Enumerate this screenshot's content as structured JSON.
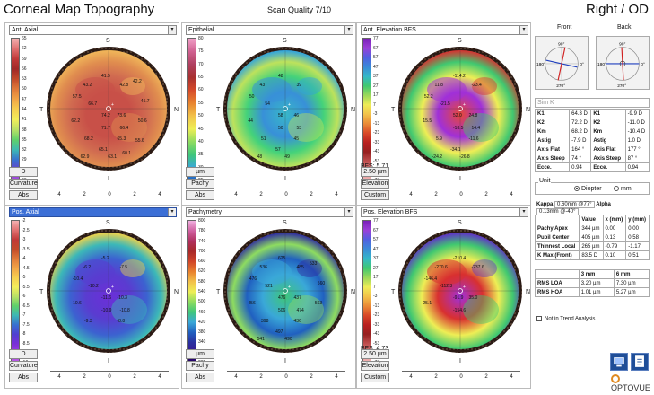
{
  "header": {
    "title": "Corneal Map Topography",
    "scan_quality": "Scan Quality 7/10",
    "eye": "Right / OD"
  },
  "directions": {
    "superior": "S",
    "inferior": "I",
    "temporal": "T",
    "nasal": "N"
  },
  "axis_ticks": [
    "4",
    "2",
    "0",
    "2",
    "4"
  ],
  "panels": [
    {
      "id": "ant-axial",
      "map_label": "Ant. Axial",
      "selected": false,
      "scale": [
        "65",
        "62",
        "59",
        "56",
        "53",
        "50",
        "47",
        "44",
        "41",
        "38",
        "35",
        "32",
        "29",
        "26",
        "23"
      ],
      "scale_colors": [
        "#f2b0b0",
        "#e07070",
        "#c03838",
        "#a02828",
        "#c24a2a",
        "#e07a3a",
        "#f1a547",
        "#f6cf50",
        "#f2ee5a",
        "#b8e066",
        "#5fd06a",
        "#3db7b5",
        "#3870d0",
        "#6a40c8",
        "#b050e0"
      ],
      "map_colors": [
        "#c85048",
        "#c85048",
        "#d06a50",
        "#e08d4f",
        "#f1b75a"
      ],
      "values": [
        "41.5",
        "43.2",
        "42.8",
        "57.5",
        "66.7",
        "74.2",
        "73.6",
        "62.2",
        "71.7",
        "66.4",
        "68.2",
        "65.3",
        "65.1",
        "62.9",
        "63.1",
        "42.2",
        "45.7",
        "50.6",
        "55.6",
        "60.1"
      ],
      "buttons": [
        "D",
        "Curvature",
        "Abs"
      ],
      "bfs": ""
    },
    {
      "id": "epithelial",
      "map_label": "Epithelial",
      "selected": false,
      "scale": [
        "80",
        "75",
        "70",
        "65",
        "60",
        "55",
        "50",
        "45",
        "40",
        "35",
        "30",
        "25"
      ],
      "scale_colors": [
        "#f0a0c8",
        "#d06090",
        "#b04060",
        "#a83030",
        "#d64a2a",
        "#e8832f",
        "#f2c24a",
        "#eeee55",
        "#8edc60",
        "#3fc67a",
        "#3aa8d8",
        "#2060c0"
      ],
      "map_colors": [
        "#38b8c8",
        "#3890d8",
        "#44d27a",
        "#bde25c",
        "#2ea2e0"
      ],
      "values": [
        "48",
        "43",
        "39",
        "50",
        "54",
        "58",
        "46",
        "44",
        "50",
        "53",
        "51",
        "45",
        "57",
        "48",
        "49"
      ],
      "buttons": [
        "µm",
        "Pachy",
        "Abs"
      ],
      "bfs": ""
    },
    {
      "id": "ant-elevation",
      "map_label": "Ant. Elevation BFS",
      "selected": false,
      "scale": [
        "77",
        "67",
        "57",
        "47",
        "37",
        "27",
        "17",
        "7",
        "-3",
        "-13",
        "-23",
        "-33",
        "-43",
        "-53",
        "-63",
        "-77"
      ],
      "scale_colors": [
        "#7a20b8",
        "#9a40d8",
        "#5060e0",
        "#3a8ad8",
        "#34b8c8",
        "#40c870",
        "#9ad85a",
        "#eeec58",
        "#f2c24a",
        "#ea8a36",
        "#d84828",
        "#b82020",
        "#962020",
        "#c05050",
        "#e08888",
        "#f2b8b8"
      ],
      "map_colors": [
        "#e64838",
        "#a030d8",
        "#eeee55",
        "#40c870",
        "#d83030"
      ],
      "values": [
        "-114.2",
        "11.8",
        "-23.4",
        "52.2",
        "-21.5",
        "52.0",
        "24.8",
        "15.5",
        "-18.5",
        "14.4",
        "5.9",
        "-11.6",
        "-34.1",
        "-24.2",
        "-26.8"
      ],
      "buttons": [
        "2.50 µm",
        "Elevation",
        "Custom"
      ],
      "bfs": "BFS: 5.71"
    },
    {
      "id": "pos-axial",
      "map_label": "Pos. Axial",
      "selected": true,
      "scale": [
        "-2",
        "-2.5",
        "-3",
        "-3.5",
        "-4",
        "-4.5",
        "-5",
        "-5.5",
        "-6",
        "-6.5",
        "-7",
        "-7.5",
        "-8",
        "-8.5",
        "-9",
        "-10"
      ],
      "scale_colors": [
        "#f2b0b0",
        "#e07070",
        "#c03838",
        "#c24a2a",
        "#e07a3a",
        "#f1a547",
        "#f6cf50",
        "#f2ee5a",
        "#b8e066",
        "#5fd06a",
        "#3db7b5",
        "#3870d0",
        "#5040d0",
        "#7a30d8",
        "#a040e0",
        "#c060e8"
      ],
      "map_colors": [
        "#6c2fd8",
        "#5a3cd0",
        "#3c62d0",
        "#3cb8b8",
        "#f1d24a"
      ],
      "values": [
        "-5.2",
        "-6.2",
        "-7.5",
        "-10.4",
        "-10.2",
        "-11.6",
        "-10.3",
        "-10.6",
        "-10.9",
        "-10.8",
        "-9.3",
        "-8.8"
      ],
      "buttons": [
        "D",
        "Curvature",
        "Abs"
      ],
      "bfs": ""
    },
    {
      "id": "pachymetry",
      "map_label": "Pachymetry",
      "selected": false,
      "scale": [
        "800",
        "780",
        "740",
        "700",
        "660",
        "620",
        "580",
        "540",
        "500",
        "460",
        "420",
        "380",
        "340",
        "300",
        "285"
      ],
      "scale_colors": [
        "#f0b0e0",
        "#d060a0",
        "#b03060",
        "#a82828",
        "#d04428",
        "#e8802e",
        "#f2c04a",
        "#eeee55",
        "#8edc60",
        "#3fc67a",
        "#3aa8d8",
        "#2060c0",
        "#2a30a0",
        "#3a1890",
        "#220060"
      ],
      "map_colors": [
        "#3fc67a",
        "#3aa8d8",
        "#2060c0",
        "#8edc60",
        "#2e2aa0"
      ],
      "values": [
        "625",
        "536",
        "485",
        "476",
        "521",
        "476",
        "437",
        "456",
        "506",
        "474",
        "398",
        "436",
        "497",
        "541",
        "490",
        "533",
        "560",
        "563"
      ],
      "buttons": [
        "µm",
        "Pachy",
        "Abs"
      ],
      "bfs": ""
    },
    {
      "id": "pos-elevation",
      "map_label": "Pos. Elevation BFS",
      "selected": false,
      "scale": [
        "77",
        "67",
        "57",
        "47",
        "37",
        "27",
        "17",
        "7",
        "-3",
        "-13",
        "-23",
        "-33",
        "-43",
        "-53",
        "-63",
        "-77"
      ],
      "scale_colors": [
        "#7a20b8",
        "#9a40d8",
        "#5060e0",
        "#3a8ad8",
        "#34b8c8",
        "#40c870",
        "#9ad85a",
        "#eeec58",
        "#f2c24a",
        "#ea8a36",
        "#d84828",
        "#b82020",
        "#962020",
        "#c05050",
        "#e08888",
        "#f2b8b8"
      ],
      "map_colors": [
        "#a030d8",
        "#d83030",
        "#eeee55",
        "#40c870",
        "#6030c8"
      ],
      "values": [
        "-210.4",
        "-270.6",
        "-237.6",
        "-146.4",
        "-112.3",
        "-91.9",
        "35.0",
        "25.1",
        "-154.6"
      ],
      "buttons": [
        "2.50 µm",
        "Elevation",
        "Custom"
      ],
      "bfs": "BFS: 4.73"
    }
  ],
  "side": {
    "front_label": "Front",
    "back_label": "Back",
    "compass_deg": {
      "top": "90°",
      "left": "180°",
      "right": "0°",
      "bottom": "270°"
    },
    "simk_placeholder": "Sim K",
    "k_rows": [
      [
        "K1",
        "64.3 D",
        "K1",
        "-9.9 D"
      ],
      [
        "K2",
        "72.2 D",
        "K2",
        "-11.0 D"
      ],
      [
        "Km",
        "68.2 D",
        "Km",
        "-10.4 D"
      ],
      [
        "Astig",
        "-7.9 D",
        "Astig",
        "1.0 D"
      ],
      [
        "Axis Flat",
        "164 °",
        "Axis Flat",
        "177 °"
      ],
      [
        "Axis Steep",
        "74 °",
        "Axis Steep",
        "87 °"
      ],
      [
        "Ecce.",
        "0.94",
        "Ecce.",
        "0.94"
      ]
    ],
    "unit_title": "Unit",
    "unit_diopter": "Diopter",
    "unit_mm": "mm",
    "kappa_label": "Kappa",
    "kappa_value": "0.60mm @77°",
    "alpha_label": "Alpha",
    "alpha_value": "0.13mm @-40°",
    "loc_header": [
      "",
      "Value",
      "x (mm)",
      "y (mm)"
    ],
    "loc_rows": [
      [
        "Pachy Apex",
        "344 µm",
        "0.00",
        "0.00"
      ],
      [
        "Pupil Center",
        "405 µm",
        "0.13",
        "0.58"
      ],
      [
        "Thinnest Local",
        "265 µm",
        "-0.79",
        "-1.17"
      ],
      [
        "K Max (Front)",
        "83.5 D",
        "0.10",
        "0.51"
      ]
    ],
    "rms_header": [
      "",
      "3 mm",
      "6 mm"
    ],
    "rms_rows": [
      [
        "RMS LOA",
        "3.20 µm",
        "7.30 µm"
      ],
      [
        "RMS HOA",
        "1.01 µm",
        "5.27 µm"
      ]
    ],
    "trend_label": "Not in Trend Analysis",
    "logo": "OPTOVUE"
  }
}
